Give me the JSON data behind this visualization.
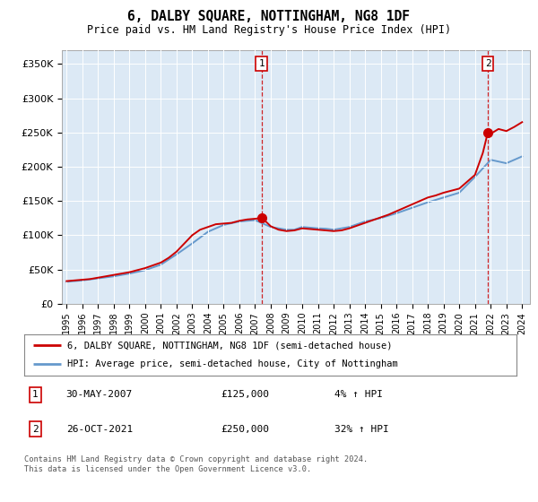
{
  "title": "6, DALBY SQUARE, NOTTINGHAM, NG8 1DF",
  "subtitle": "Price paid vs. HM Land Registry's House Price Index (HPI)",
  "legend_line1": "6, DALBY SQUARE, NOTTINGHAM, NG8 1DF (semi-detached house)",
  "legend_line2": "HPI: Average price, semi-detached house, City of Nottingham",
  "footnote": "Contains HM Land Registry data © Crown copyright and database right 2024.\nThis data is licensed under the Open Government Licence v3.0.",
  "transactions": [
    {
      "num": 1,
      "date": "30-MAY-2007",
      "price": 125000,
      "hpi_pct": "4%",
      "direction": "↑"
    },
    {
      "num": 2,
      "date": "26-OCT-2021",
      "price": 250000,
      "hpi_pct": "32%",
      "direction": "↑"
    }
  ],
  "transaction_years": [
    2007.41,
    2021.82
  ],
  "background_color": "#dce9f5",
  "red_line_color": "#cc0000",
  "blue_line_color": "#6699cc",
  "grid_color": "#ffffff",
  "ylim": [
    0,
    370000
  ],
  "yticks": [
    0,
    50000,
    100000,
    150000,
    200000,
    250000,
    300000,
    350000
  ],
  "ytick_labels": [
    "£0",
    "£50K",
    "£100K",
    "£150K",
    "£200K",
    "£250K",
    "£300K",
    "£350K"
  ],
  "hpi_years": [
    1995.0,
    1995.5,
    1996.0,
    1996.5,
    1997.0,
    1997.5,
    1998.0,
    1998.5,
    1999.0,
    1999.5,
    2000.0,
    2000.5,
    2001.0,
    2001.5,
    2002.0,
    2002.5,
    2003.0,
    2003.5,
    2004.0,
    2004.5,
    2005.0,
    2005.5,
    2006.0,
    2006.5,
    2007.0,
    2007.5,
    2008.0,
    2008.5,
    2009.0,
    2009.5,
    2010.0,
    2010.5,
    2011.0,
    2011.5,
    2012.0,
    2012.5,
    2013.0,
    2013.5,
    2014.0,
    2014.5,
    2015.0,
    2015.5,
    2016.0,
    2016.5,
    2017.0,
    2017.5,
    2018.0,
    2018.5,
    2019.0,
    2019.5,
    2020.0,
    2020.5,
    2021.0,
    2021.5,
    2022.0,
    2022.5,
    2023.0,
    2023.5,
    2024.0
  ],
  "hpi_values": [
    32000,
    33000,
    34000,
    35500,
    37000,
    38500,
    40000,
    42000,
    44000,
    46500,
    49000,
    53000,
    57000,
    64500,
    72000,
    80000,
    88000,
    96500,
    105000,
    110000,
    115000,
    117500,
    120000,
    121000,
    122000,
    117000,
    112000,
    110000,
    108000,
    108000,
    112000,
    111000,
    110000,
    109500,
    108000,
    110000,
    112000,
    116000,
    120000,
    122500,
    125000,
    128500,
    132000,
    136000,
    140000,
    144000,
    148000,
    151500,
    155000,
    158500,
    162000,
    173500,
    185000,
    197500,
    210000,
    207500,
    205000,
    210000,
    215000
  ],
  "actual_years": [
    1995.0,
    1995.5,
    1996.0,
    1996.5,
    1997.0,
    1997.5,
    1998.0,
    1998.5,
    1999.0,
    1999.5,
    2000.0,
    2000.5,
    2001.0,
    2001.5,
    2002.0,
    2002.5,
    2003.0,
    2003.5,
    2004.0,
    2004.5,
    2005.0,
    2005.5,
    2006.0,
    2006.5,
    2007.0,
    2007.41,
    2007.5,
    2008.0,
    2008.5,
    2009.0,
    2009.5,
    2010.0,
    2010.5,
    2011.0,
    2011.5,
    2012.0,
    2012.5,
    2013.0,
    2013.5,
    2014.0,
    2014.5,
    2015.0,
    2015.5,
    2016.0,
    2016.5,
    2017.0,
    2017.5,
    2018.0,
    2018.5,
    2019.0,
    2019.5,
    2020.0,
    2020.5,
    2021.0,
    2021.5,
    2021.82,
    2022.0,
    2022.5,
    2023.0,
    2023.5,
    2024.0
  ],
  "actual_values": [
    33000,
    34000,
    35000,
    36000,
    38000,
    40000,
    42000,
    44000,
    46000,
    49000,
    52000,
    56000,
    60000,
    67000,
    76000,
    88000,
    100000,
    108000,
    112000,
    116000,
    117000,
    118000,
    121000,
    123000,
    124000,
    125000,
    124000,
    113000,
    108000,
    106000,
    107000,
    110000,
    109000,
    108000,
    107000,
    106000,
    107000,
    110000,
    114000,
    118000,
    122000,
    126000,
    130000,
    135000,
    140000,
    145000,
    150000,
    155000,
    158000,
    162000,
    165000,
    168000,
    178000,
    188000,
    220000,
    250000,
    248000,
    255000,
    252000,
    258000,
    265000
  ],
  "xtick_years": [
    1995,
    1996,
    1997,
    1998,
    1999,
    2000,
    2001,
    2002,
    2003,
    2004,
    2005,
    2006,
    2007,
    2008,
    2009,
    2010,
    2011,
    2012,
    2013,
    2014,
    2015,
    2016,
    2017,
    2018,
    2019,
    2020,
    2021,
    2022,
    2023,
    2024
  ],
  "xlim": [
    1994.7,
    2024.5
  ]
}
